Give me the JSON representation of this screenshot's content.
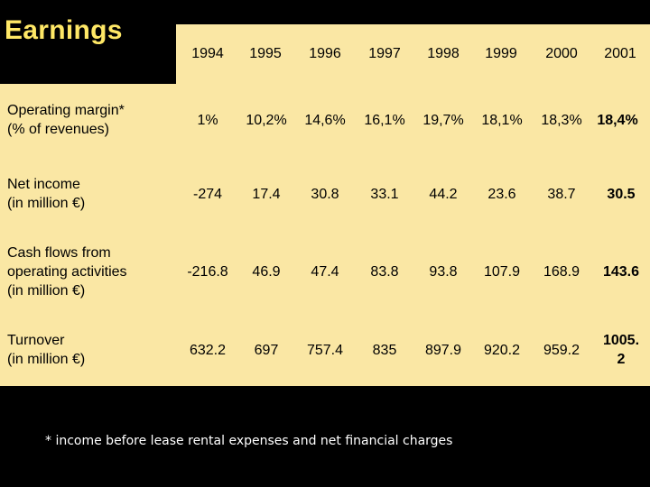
{
  "title": "Earnings",
  "years": [
    "1994",
    "1995",
    "1996",
    "1997",
    "1998",
    "1999",
    "2000",
    "2001"
  ],
  "rows": [
    {
      "label_line1": "Operating margin*",
      "label_line2": "(% of revenues)",
      "label_line3": "",
      "values": [
        "1%",
        "10,2%",
        "14,6%",
        "16,1%",
        "19,7%",
        "18,1%",
        "18,3%",
        "18,4%"
      ]
    },
    {
      "label_line1": "Net income",
      "label_line2": "(in million €)",
      "label_line3": "",
      "values": [
        "-274",
        "17.4",
        "30.8",
        "33.1",
        "44.2",
        "23.6",
        "38.7",
        "30.5"
      ]
    },
    {
      "label_line1": "Cash flows from",
      "label_line2": "operating activities",
      "label_line3": "(in million €)",
      "values": [
        "-216.8",
        "46.9",
        "47.4",
        "83.8",
        "93.8",
        "107.9",
        "168.9",
        "143.6"
      ]
    },
    {
      "label_line1": "Turnover",
      "label_line2": "(in million €)",
      "label_line3": "",
      "values": [
        "632.2",
        "697",
        "757.4",
        "835",
        "897.9",
        "920.2",
        "959.2",
        "1005.2"
      ],
      "last_value_line1": "1005.",
      "last_value_line2": "2"
    }
  ],
  "footnote": "* income before lease rental expenses and net financial charges",
  "colors": {
    "background": "#000000",
    "panel": "#FAE7A4",
    "title": "#FFE866",
    "footnote": "#FFFFFF"
  }
}
